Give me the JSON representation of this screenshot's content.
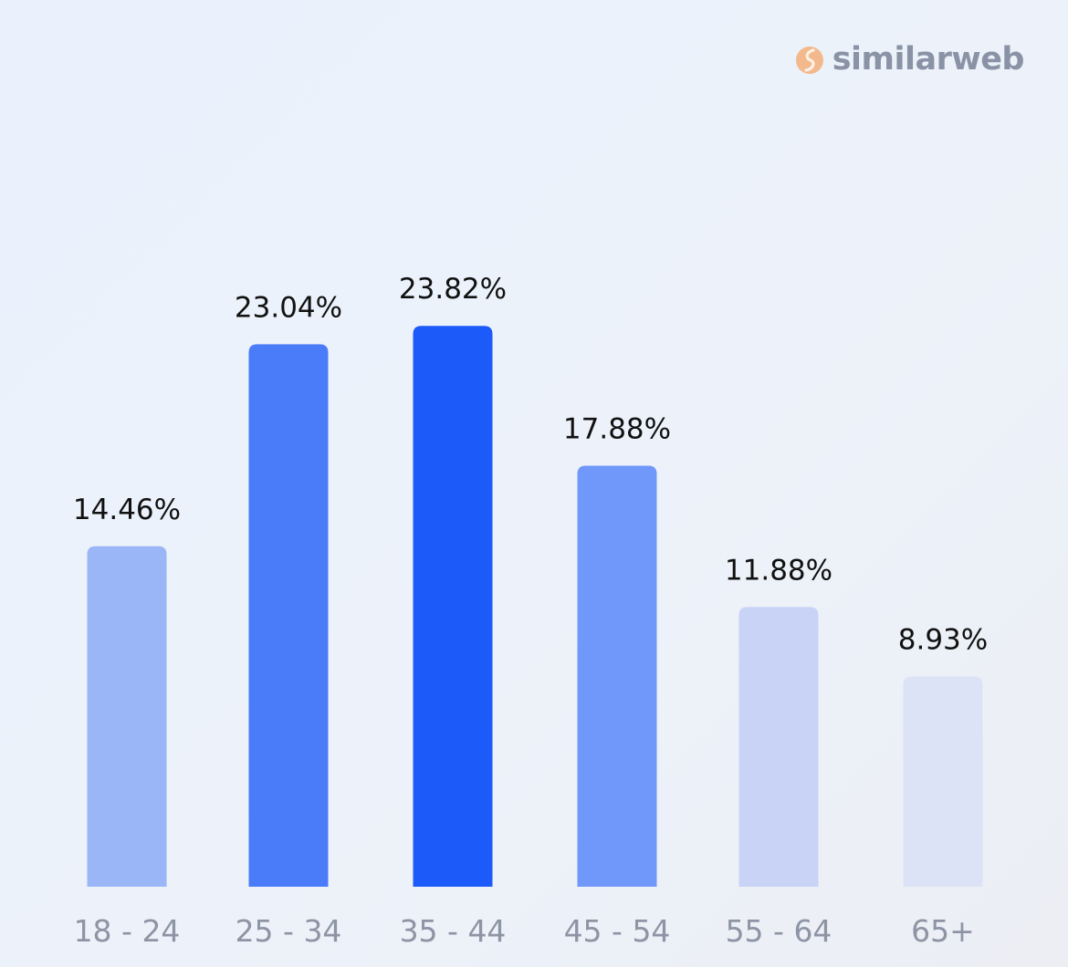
{
  "brand": {
    "name": "similarweb",
    "icon": "similarweb-logo-icon",
    "icon_color": "#f3b98c",
    "text_color": "#8a93a6"
  },
  "chart_data": {
    "type": "bar",
    "title": "",
    "xlabel": "",
    "ylabel": "",
    "ylim": [
      0,
      25
    ],
    "grid": false,
    "categories": [
      "18 - 24",
      "25 - 34",
      "35 - 44",
      "45 - 54",
      "55 - 64",
      "65+"
    ],
    "values": [
      14.46,
      23.04,
      23.82,
      17.88,
      11.88,
      8.93
    ],
    "labels": [
      "14.46%",
      "23.04%",
      "23.82%",
      "17.88%",
      "11.88%",
      "8.93%"
    ],
    "colors": [
      "#9bb6f6",
      "#4a7cfa",
      "#1d5afa",
      "#7098fa",
      "#c9d3f6",
      "#dde3f6"
    ],
    "value_label_color": "#111111",
    "tick_label_color": "#8d94a4"
  }
}
